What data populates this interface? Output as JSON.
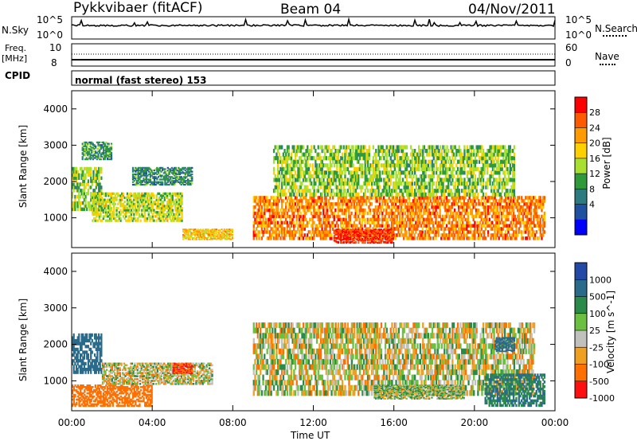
{
  "header": {
    "station": "Pykkvibaer (fitACF)",
    "beam": "Beam 04",
    "date": "04/Nov/2011"
  },
  "top_panels": {
    "nsky_label": "N.Sky",
    "nsky_ticks": [
      "10^5",
      "10^0"
    ],
    "nsearch_label": "N.Search",
    "nsearch_ticks": [
      "10^5",
      "10^0"
    ],
    "freq_label": "Freq.",
    "freq_unit": "[MHz]",
    "freq_ticks": [
      "10",
      "8"
    ],
    "nave_label": "Nave",
    "nave_ticks": [
      "60",
      "0"
    ],
    "cpid_label": "CPID",
    "cpid_value": "normal (fast stereo) 153"
  },
  "axes": {
    "ylabel": "Slant Range [km]",
    "yticks": [
      "4000",
      "3000",
      "2000",
      "1000"
    ],
    "xlabel": "Time UT",
    "xticks": [
      "00:00",
      "04:00",
      "08:00",
      "12:00",
      "16:00",
      "20:00",
      "00:00"
    ]
  },
  "colorbars": {
    "power": {
      "label": "Power [dB]",
      "ticks": [
        "28",
        "24",
        "20",
        "16",
        "12",
        "8",
        "4"
      ],
      "colors": [
        "#ff0000",
        "#ff5a00",
        "#ff9a00",
        "#ffd000",
        "#a8e030",
        "#2e9a3a",
        "#2d7a80",
        "#2050a0",
        "#0000ff"
      ]
    },
    "velocity": {
      "label": "Velocity [m s^-1]",
      "ticks": [
        "1000",
        "500",
        "100",
        "25",
        "-25",
        "-100",
        "-500",
        "-1000"
      ],
      "colors": [
        "#2448a8",
        "#2a6a8a",
        "#2a8a4a",
        "#6cc040",
        "#c0c0bc",
        "#f0a020",
        "#ff7000",
        "#ff1010"
      ]
    }
  },
  "chart_data": [
    {
      "type": "heatmap",
      "title": "Power",
      "xlabel": "Time UT",
      "ylabel": "Slant Range [km]",
      "xlim": [
        "00:00",
        "24:00"
      ],
      "ylim": [
        180,
        4500
      ],
      "zlabel": "Power [dB]",
      "zlim": [
        0,
        30
      ],
      "regions": [
        {
          "time": [
            "00:00",
            "01:30"
          ],
          "range": [
            1200,
            2400
          ],
          "value": 14
        },
        {
          "time": [
            "00:30",
            "02:00"
          ],
          "range": [
            2600,
            3100
          ],
          "value": 10
        },
        {
          "time": [
            "01:00",
            "05:30"
          ],
          "range": [
            900,
            1700
          ],
          "value": 16
        },
        {
          "time": [
            "03:00",
            "06:00"
          ],
          "range": [
            1900,
            2400
          ],
          "value": 9
        },
        {
          "time": [
            "05:30",
            "08:00"
          ],
          "range": [
            400,
            700
          ],
          "value": 20
        },
        {
          "time": [
            "09:00",
            "23:30"
          ],
          "range": [
            400,
            1600
          ],
          "value": 24
        },
        {
          "time": [
            "13:00",
            "16:00"
          ],
          "range": [
            300,
            700
          ],
          "value": 29
        },
        {
          "time": [
            "10:00",
            "22:00"
          ],
          "range": [
            1600,
            3000
          ],
          "value": 14
        }
      ]
    },
    {
      "type": "heatmap",
      "title": "Velocity",
      "xlabel": "Time UT",
      "ylabel": "Slant Range [km]",
      "xlim": [
        "00:00",
        "24:00"
      ],
      "ylim": [
        180,
        4500
      ],
      "zlabel": "Velocity [m s^-1]",
      "zlim": [
        -1000,
        1000
      ],
      "regions": [
        {
          "time": [
            "00:00",
            "01:30"
          ],
          "range": [
            1200,
            2300
          ],
          "value": 700
        },
        {
          "time": [
            "00:00",
            "04:00"
          ],
          "range": [
            300,
            900
          ],
          "value": -300
        },
        {
          "time": [
            "01:30",
            "07:00"
          ],
          "range": [
            900,
            1500
          ],
          "value": 0
        },
        {
          "time": [
            "05:00",
            "06:00"
          ],
          "range": [
            1200,
            1500
          ],
          "value": -500
        },
        {
          "time": [
            "09:00",
            "23:00"
          ],
          "range": [
            600,
            2600
          ],
          "value": 0
        },
        {
          "time": [
            "15:00",
            "19:30"
          ],
          "range": [
            500,
            900
          ],
          "value": 60
        },
        {
          "time": [
            "20:30",
            "23:30"
          ],
          "range": [
            300,
            1200
          ],
          "value": 500
        },
        {
          "time": [
            "21:00",
            "22:00"
          ],
          "range": [
            1800,
            2200
          ],
          "value": 800
        }
      ]
    }
  ]
}
